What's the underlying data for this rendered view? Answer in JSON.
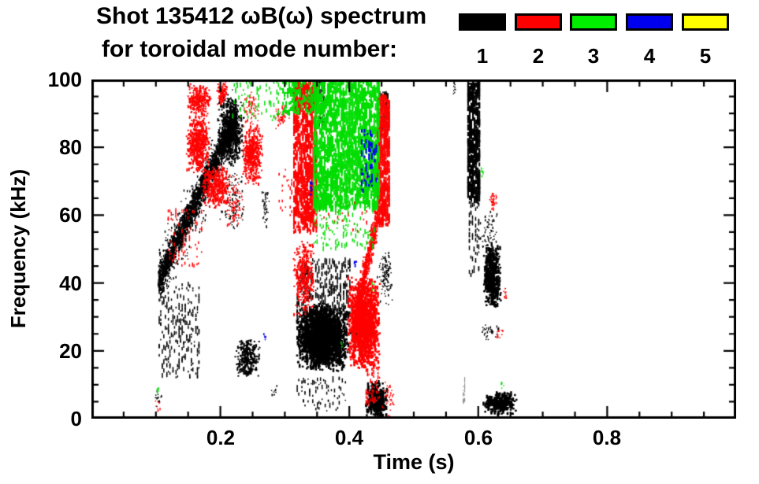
{
  "header": {
    "title_line1": "Shot 135412 ωB(ω) spectrum",
    "title_line2": "for toroidal mode number:"
  },
  "axis": {
    "x_title": "Time (s)",
    "y_title": "Frequency (kHz)"
  },
  "chart_data": {
    "type": "scatter",
    "title": "Shot 135412 ωB(ω) spectrum for toroidal mode number: 1 2 3 4 5",
    "xlabel": "Time (s)",
    "ylabel": "Frequency (kHz)",
    "xlim": [
      0.0,
      1.0
    ],
    "ylim": [
      0,
      100
    ],
    "x_major_ticks": [
      0.2,
      0.4,
      0.6,
      0.8
    ],
    "x_tick_labels": [
      "0.2",
      "0.4",
      "0.6",
      "0.8"
    ],
    "x_minor_step": 0.05,
    "y_major_ticks": [
      0,
      20,
      40,
      60,
      80,
      100
    ],
    "y_tick_labels": [
      "0",
      "20",
      "40",
      "60",
      "80",
      "100"
    ],
    "y_minor_step": 5,
    "grid": false,
    "legend": {
      "position": "top-right",
      "entries": [
        {
          "label": "1",
          "color": "#000000"
        },
        {
          "label": "2",
          "color": "#ff0000"
        },
        {
          "label": "3",
          "color": "#00ee00"
        },
        {
          "label": "4",
          "color": "#0000ee"
        },
        {
          "label": "5",
          "color": "#ffff00"
        }
      ]
    },
    "series": [
      {
        "name": "n=1",
        "mode_number": 1,
        "color": "#000000",
        "clusters": [
          {
            "shape": "chirp",
            "t": [
              0.105,
              0.225
            ],
            "f": [
              41,
              89
            ],
            "df": 5,
            "n": 1600,
            "s": 2
          },
          {
            "shape": "chirp",
            "t": [
              0.105,
              0.225
            ],
            "f": [
              41,
              89
            ],
            "df": 12,
            "n": 450,
            "s": 1.5
          },
          {
            "shape": "vstreaks",
            "t": [
              0.104,
              0.168
            ],
            "f": [
              12,
              40
            ],
            "n": 240,
            "w": 1.5,
            "h": 5
          },
          {
            "shape": "blob",
            "t": [
              0.195,
              0.237
            ],
            "f": [
              74,
              96
            ],
            "n": 650,
            "s": 2
          },
          {
            "shape": "blob",
            "t": [
              0.197,
              0.242
            ],
            "f": [
              55,
              75
            ],
            "n": 110,
            "s": 1.5
          },
          {
            "shape": "blob",
            "t": [
              0.222,
              0.262
            ],
            "f": [
              12,
              24
            ],
            "n": 300,
            "s": 2
          },
          {
            "shape": "blob",
            "t": [
              0.318,
              0.4
            ],
            "f": [
              14,
              34
            ],
            "n": 2400,
            "s": 2.5
          },
          {
            "shape": "vstreaks",
            "t": [
              0.318,
              0.402
            ],
            "f": [
              30,
              47
            ],
            "n": 300,
            "w": 1.5,
            "h": 6
          },
          {
            "shape": "vstreaks",
            "t": [
              0.318,
              0.4
            ],
            "f": [
              2,
              12
            ],
            "n": 80,
            "w": 1.5,
            "h": 4
          },
          {
            "shape": "blob",
            "t": [
              0.4,
              0.438
            ],
            "f": [
              22,
              29
            ],
            "n": 160,
            "s": 2
          },
          {
            "shape": "blob",
            "t": [
              0.425,
              0.46
            ],
            "f": [
              0,
              11
            ],
            "n": 400,
            "s": 2.5
          },
          {
            "shape": "blob",
            "t": [
              0.443,
              0.468
            ],
            "f": [
              33,
              50
            ],
            "n": 110,
            "s": 1.5
          },
          {
            "shape": "vstreaks",
            "t": [
              0.352,
              0.362
            ],
            "f": [
              86,
              100
            ],
            "n": 60,
            "w": 1.5,
            "h": 5
          },
          {
            "shape": "vstreaks",
            "t": [
              0.446,
              0.461
            ],
            "f": [
              83,
              97
            ],
            "n": 100,
            "w": 1.5,
            "h": 5
          },
          {
            "shape": "vstreaks",
            "t": [
              0.583,
              0.603
            ],
            "f": [
              64,
              99
            ],
            "n": 430,
            "w": 2,
            "h": 7
          },
          {
            "shape": "vstreaks",
            "t": [
              0.585,
              0.602
            ],
            "f": [
              42,
              64
            ],
            "n": 60,
            "w": 1.5,
            "h": 5
          },
          {
            "shape": "blob",
            "t": [
              0.607,
              0.636
            ],
            "f": [
              32,
              52
            ],
            "n": 450,
            "s": 2.5
          },
          {
            "shape": "blob",
            "t": [
              0.6,
              0.632
            ],
            "f": [
              49,
              62
            ],
            "n": 60,
            "s": 1.5
          },
          {
            "shape": "blob",
            "t": [
              0.608,
              0.66
            ],
            "f": [
              1,
              8
            ],
            "n": 330,
            "s": 2.5
          },
          {
            "shape": "vstreaks",
            "t": [
              0.576,
              0.58
            ],
            "f": [
              4,
              12
            ],
            "n": 22,
            "w": 1,
            "h": 4,
            "color": "#888888"
          },
          {
            "shape": "blob",
            "t": [
              0.598,
              0.634
            ],
            "f": [
              23,
              29
            ],
            "n": 36,
            "s": 1.5
          },
          {
            "shape": "blob",
            "t": [
              0.264,
              0.276
            ],
            "f": [
              55,
              68
            ],
            "n": 40,
            "s": 1.5
          },
          {
            "shape": "blob",
            "t": [
              0.098,
              0.11
            ],
            "f": [
              3,
              9
            ],
            "n": 16,
            "s": 1.5
          },
          {
            "shape": "blob",
            "t": [
              0.278,
              0.29
            ],
            "f": [
              6,
              10
            ],
            "n": 10,
            "s": 1.5
          },
          {
            "shape": "blob",
            "t": [
              0.56,
              0.566
            ],
            "f": [
              95,
              100
            ],
            "n": 10,
            "s": 1.5
          }
        ]
      },
      {
        "name": "n=2",
        "mode_number": 2,
        "color": "#ff0000",
        "clusters": [
          {
            "shape": "blob",
            "t": [
              0.147,
              0.183
            ],
            "f": [
              72,
              90
            ],
            "n": 520,
            "s": 2
          },
          {
            "shape": "blob",
            "t": [
              0.147,
              0.186
            ],
            "f": [
              89,
              99
            ],
            "n": 220,
            "s": 2
          },
          {
            "shape": "blob",
            "t": [
              0.17,
              0.216
            ],
            "f": [
              62,
              75
            ],
            "n": 380,
            "s": 2
          },
          {
            "shape": "vstreaks",
            "t": [
              0.118,
              0.172
            ],
            "f": [
              45,
              62
            ],
            "n": 80,
            "w": 1.5,
            "h": 4
          },
          {
            "shape": "blob",
            "t": [
              0.205,
              0.237
            ],
            "f": [
              55,
              72
            ],
            "n": 80,
            "s": 1.5
          },
          {
            "shape": "blob",
            "t": [
              0.234,
              0.266
            ],
            "f": [
              69,
              87
            ],
            "n": 400,
            "s": 2
          },
          {
            "shape": "blob",
            "t": [
              0.234,
              0.262
            ],
            "f": [
              86,
              97
            ],
            "n": 60,
            "s": 1.5
          },
          {
            "shape": "blob",
            "t": [
              0.193,
              0.212
            ],
            "f": [
              92,
              100
            ],
            "n": 90,
            "s": 2
          },
          {
            "shape": "blob",
            "t": [
              0.283,
              0.307
            ],
            "f": [
              85,
              93
            ],
            "n": 60,
            "s": 1.5
          },
          {
            "shape": "vstreaks",
            "t": [
              0.29,
              0.312
            ],
            "f": [
              60,
              74
            ],
            "n": 24,
            "w": 1.5,
            "h": 4
          },
          {
            "shape": "vstreaks",
            "t": [
              0.313,
              0.35
            ],
            "f": [
              55,
              100
            ],
            "n": 800,
            "w": 2,
            "h": 7
          },
          {
            "shape": "blob",
            "t": [
              0.313,
              0.347
            ],
            "f": [
              30,
              54
            ],
            "n": 330,
            "s": 2
          },
          {
            "shape": "vstreaks",
            "t": [
              0.35,
              0.44
            ],
            "f": [
              55,
              72
            ],
            "n": 60,
            "w": 1.5,
            "h": 4
          },
          {
            "shape": "blob",
            "t": [
              0.397,
              0.448
            ],
            "f": [
              14,
              42
            ],
            "n": 1400,
            "s": 2.5
          },
          {
            "shape": "chirp",
            "t": [
              0.408,
              0.443
            ],
            "f": [
              30,
              58
            ],
            "df": 6,
            "n": 420,
            "s": 2
          },
          {
            "shape": "vstreaks",
            "t": [
              0.443,
              0.463
            ],
            "f": [
              57,
              95
            ],
            "n": 540,
            "w": 2,
            "h": 7
          },
          {
            "shape": "vstreaks",
            "t": [
              0.425,
              0.448
            ],
            "f": [
              4,
              16
            ],
            "n": 70,
            "w": 1.5,
            "h": 4
          },
          {
            "shape": "blob",
            "t": [
              0.449,
              0.472
            ],
            "f": [
              0,
              12
            ],
            "n": 40,
            "s": 1.5
          },
          {
            "shape": "blob",
            "t": [
              0.615,
              0.63
            ],
            "f": [
              61,
              67
            ],
            "n": 40,
            "s": 1.5
          },
          {
            "shape": "blob",
            "t": [
              0.639,
              0.646
            ],
            "f": [
              35,
              39
            ],
            "n": 10,
            "s": 1.5
          },
          {
            "shape": "blob",
            "t": [
              0.626,
              0.64
            ],
            "f": [
              22,
              27
            ],
            "n": 12,
            "s": 1.5
          },
          {
            "shape": "blob",
            "t": [
              0.099,
              0.107
            ],
            "f": [
              2,
              7
            ],
            "n": 8,
            "s": 1.5
          }
        ]
      },
      {
        "name": "n=3",
        "mode_number": 3,
        "color": "#00dd00",
        "clusters": [
          {
            "shape": "vstreaks",
            "t": [
              0.344,
              0.447
            ],
            "f": [
              62,
              101
            ],
            "n": 1800,
            "w": 2,
            "h": 8
          },
          {
            "shape": "vstreaks",
            "t": [
              0.344,
              0.44
            ],
            "f": [
              50,
              63
            ],
            "n": 110,
            "w": 1.5,
            "h": 5
          },
          {
            "shape": "vstreaks",
            "t": [
              0.296,
              0.344
            ],
            "f": [
              90,
              101
            ],
            "n": 170,
            "w": 2,
            "h": 6
          },
          {
            "shape": "vstreaks",
            "t": [
              0.218,
              0.296
            ],
            "f": [
              88,
              101
            ],
            "n": 80,
            "w": 1.5,
            "h": 5
          },
          {
            "shape": "blob",
            "t": [
              0.603,
              0.608
            ],
            "f": [
              71,
              75
            ],
            "n": 8,
            "s": 1.5
          },
          {
            "shape": "blob",
            "t": [
              0.635,
              0.641
            ],
            "f": [
              8,
              11
            ],
            "n": 6,
            "s": 1.5
          },
          {
            "shape": "blob",
            "t": [
              0.1,
              0.106
            ],
            "f": [
              7,
              10
            ],
            "n": 6,
            "s": 1.5
          },
          {
            "shape": "blob",
            "t": [
              0.434,
              0.44
            ],
            "f": [
              37,
              41
            ],
            "n": 6,
            "s": 1.5
          },
          {
            "shape": "blob",
            "t": [
              0.391,
              0.398
            ],
            "f": [
              53,
              60
            ],
            "n": 12,
            "s": 1.5
          },
          {
            "shape": "blob",
            "t": [
              0.386,
              0.392
            ],
            "f": [
              20,
              23
            ],
            "n": 5,
            "s": 1.5
          }
        ]
      },
      {
        "name": "n=4",
        "mode_number": 4,
        "color": "#0000ee",
        "clusters": [
          {
            "shape": "vstreaks",
            "t": [
              0.418,
              0.443
            ],
            "f": [
              67,
              85
            ],
            "n": 55,
            "w": 2,
            "h": 6
          },
          {
            "shape": "blob",
            "t": [
              0.337,
              0.343
            ],
            "f": [
              65,
              70
            ],
            "n": 8,
            "s": 2
          },
          {
            "shape": "blob",
            "t": [
              0.405,
              0.412
            ],
            "f": [
              44,
              48
            ],
            "n": 6,
            "s": 2
          },
          {
            "shape": "blob",
            "t": [
              0.266,
              0.271
            ],
            "f": [
              23,
              26
            ],
            "n": 4,
            "s": 1.5
          }
        ]
      },
      {
        "name": "n=5",
        "mode_number": 5,
        "color": "#ffff00",
        "clusters": []
      }
    ]
  }
}
